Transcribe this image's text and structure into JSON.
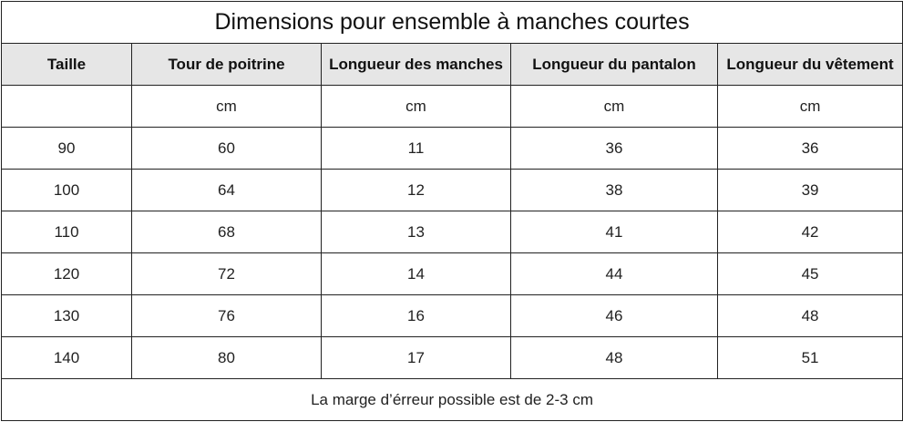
{
  "title": "Dimensions pour ensemble à manches courtes",
  "headers": [
    "Taille",
    "Tour de poitrine",
    "Longueur des manches",
    "Longueur du pantalon",
    "Longueur du vêtement"
  ],
  "units": [
    "",
    "cm",
    "cm",
    "cm",
    "cm"
  ],
  "rows": [
    [
      "90",
      "60",
      "11",
      "36",
      "36"
    ],
    [
      "100",
      "64",
      "12",
      "38",
      "39"
    ],
    [
      "110",
      "68",
      "13",
      "41",
      "42"
    ],
    [
      "120",
      "72",
      "14",
      "44",
      "45"
    ],
    [
      "130",
      "76",
      "16",
      "46",
      "48"
    ],
    [
      "140",
      "80",
      "17",
      "48",
      "51"
    ]
  ],
  "footer": "La marge d’érreur possible est de 2-3 cm"
}
